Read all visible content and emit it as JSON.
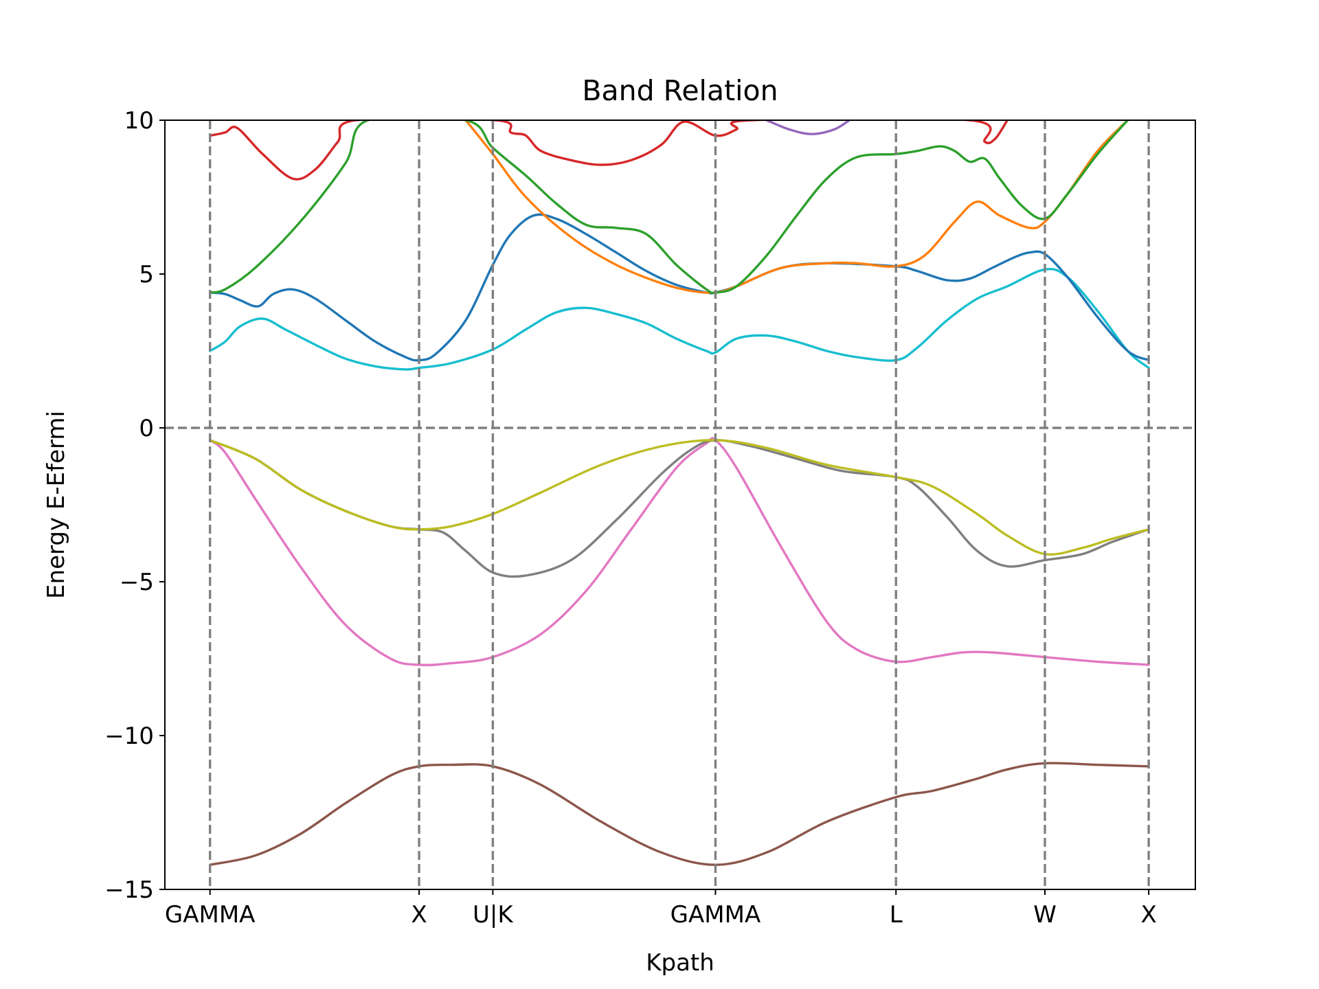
{
  "chart_data": {
    "type": "line",
    "title": "Band Relation",
    "xlabel": "Kpath",
    "ylabel": "Energy E-Efermi",
    "ylim": [
      -15,
      10
    ],
    "xlim": [
      -0.3,
      6.55
    ],
    "yticks": [
      {
        "value": 10,
        "label": "10"
      },
      {
        "value": 5,
        "label": "5"
      },
      {
        "value": 0,
        "label": "0"
      },
      {
        "value": -5,
        "label": "−5"
      },
      {
        "value": -10,
        "label": "−10"
      },
      {
        "value": -15,
        "label": "−15"
      }
    ],
    "kpoints": [
      {
        "x": 0.0,
        "label": "GAMMA"
      },
      {
        "x": 1.39,
        "label": "X"
      },
      {
        "x": 1.88,
        "label": "U|K"
      },
      {
        "x": 3.36,
        "label": "GAMMA"
      },
      {
        "x": 4.56,
        "label": "L"
      },
      {
        "x": 5.55,
        "label": "W"
      },
      {
        "x": 6.24,
        "label": "X"
      }
    ],
    "fermi_level": 0,
    "grid": false,
    "legend": "none",
    "series": [
      {
        "color": "#8c564b",
        "x": [
          0.0,
          0.3,
          0.6,
          0.9,
          1.2,
          1.39,
          1.6,
          1.88,
          2.2,
          2.6,
          3.0,
          3.36,
          3.7,
          4.1,
          4.56,
          4.8,
          5.1,
          5.3,
          5.55,
          5.9,
          6.24
        ],
        "y": [
          -14.2,
          -13.9,
          -13.2,
          -12.2,
          -11.3,
          -11.0,
          -10.95,
          -11.0,
          -11.6,
          -12.8,
          -13.8,
          -14.2,
          -13.8,
          -12.8,
          -12.0,
          -11.8,
          -11.4,
          -11.1,
          -10.9,
          -10.95,
          -11.0
        ]
      },
      {
        "color": "#e377c2",
        "x": [
          0.0,
          0.1,
          0.3,
          0.6,
          0.9,
          1.2,
          1.39,
          1.6,
          1.88,
          2.2,
          2.5,
          2.8,
          3.1,
          3.3,
          3.36,
          3.5,
          3.8,
          4.1,
          4.3,
          4.56,
          4.8,
          5.0,
          5.2,
          5.55,
          5.9,
          6.24
        ],
        "y": [
          -0.4,
          -0.8,
          -2.3,
          -4.5,
          -6.4,
          -7.5,
          -7.7,
          -7.65,
          -7.45,
          -6.7,
          -5.3,
          -3.3,
          -1.3,
          -0.5,
          -0.4,
          -1.3,
          -3.9,
          -6.3,
          -7.2,
          -7.6,
          -7.45,
          -7.3,
          -7.3,
          -7.45,
          -7.6,
          -7.7
        ]
      },
      {
        "color": "#7f7f7f",
        "x": [
          0.0,
          0.3,
          0.6,
          0.9,
          1.2,
          1.39,
          1.55,
          1.7,
          1.88,
          2.1,
          2.4,
          2.7,
          3.0,
          3.2,
          3.36,
          3.6,
          3.9,
          4.2,
          4.56,
          4.7,
          4.9,
          5.1,
          5.3,
          5.55,
          5.8,
          6.0,
          6.24
        ],
        "y": [
          -0.4,
          -1.0,
          -2.0,
          -2.7,
          -3.2,
          -3.3,
          -3.4,
          -4.0,
          -4.7,
          -4.8,
          -4.3,
          -3.0,
          -1.5,
          -0.7,
          -0.4,
          -0.6,
          -1.0,
          -1.4,
          -1.6,
          -1.9,
          -2.9,
          -4.0,
          -4.5,
          -4.3,
          -4.1,
          -3.7,
          -3.3
        ]
      },
      {
        "color": "#bcbd22",
        "x": [
          0.0,
          0.3,
          0.6,
          0.9,
          1.2,
          1.39,
          1.6,
          1.88,
          2.2,
          2.6,
          3.0,
          3.36,
          3.7,
          4.1,
          4.56,
          4.8,
          5.1,
          5.3,
          5.55,
          5.8,
          6.0,
          6.24
        ],
        "y": [
          -0.4,
          -1.0,
          -2.0,
          -2.7,
          -3.2,
          -3.3,
          -3.2,
          -2.8,
          -2.1,
          -1.2,
          -0.6,
          -0.4,
          -0.65,
          -1.2,
          -1.6,
          -1.9,
          -2.8,
          -3.5,
          -4.1,
          -3.9,
          -3.6,
          -3.3
        ]
      },
      {
        "color": "#17becf",
        "x": [
          0.0,
          0.1,
          0.2,
          0.35,
          0.5,
          0.7,
          0.9,
          1.1,
          1.3,
          1.39,
          1.6,
          1.88,
          2.1,
          2.3,
          2.5,
          2.7,
          2.9,
          3.1,
          3.3,
          3.36,
          3.5,
          3.7,
          3.9,
          4.1,
          4.3,
          4.56,
          4.7,
          4.9,
          5.1,
          5.3,
          5.55,
          5.7,
          5.9,
          6.1,
          6.24
        ],
        "y": [
          2.5,
          2.8,
          3.3,
          3.55,
          3.2,
          2.7,
          2.25,
          2.0,
          1.9,
          1.95,
          2.1,
          2.55,
          3.2,
          3.75,
          3.9,
          3.7,
          3.4,
          2.9,
          2.5,
          2.45,
          2.9,
          3.0,
          2.8,
          2.5,
          2.3,
          2.2,
          2.6,
          3.5,
          4.2,
          4.6,
          5.15,
          4.9,
          3.8,
          2.5,
          1.95
        ]
      },
      {
        "color": "#1f77b4",
        "x": [
          0.0,
          0.1,
          0.2,
          0.32,
          0.42,
          0.55,
          0.7,
          0.9,
          1.1,
          1.3,
          1.39,
          1.5,
          1.7,
          1.88,
          2.0,
          2.15,
          2.3,
          2.5,
          2.7,
          2.9,
          3.1,
          3.3,
          3.36,
          3.5,
          3.8,
          4.1,
          4.56,
          4.7,
          4.9,
          5.05,
          5.2,
          5.35,
          5.45,
          5.55,
          5.7,
          5.9,
          6.1,
          6.24
        ],
        "y": [
          4.4,
          4.35,
          4.15,
          3.95,
          4.35,
          4.5,
          4.2,
          3.5,
          2.8,
          2.3,
          2.2,
          2.4,
          3.5,
          5.3,
          6.3,
          6.9,
          6.8,
          6.3,
          5.7,
          5.1,
          4.65,
          4.4,
          4.4,
          4.6,
          5.2,
          5.35,
          5.25,
          5.1,
          4.8,
          4.85,
          5.2,
          5.55,
          5.7,
          5.65,
          4.9,
          3.6,
          2.5,
          2.2
        ]
      },
      {
        "color": "#ff7f0e",
        "x": [
          1.7,
          1.88,
          2.1,
          2.4,
          2.7,
          3.0,
          3.2,
          3.36,
          3.5,
          3.8,
          4.1,
          4.3,
          4.56,
          4.75,
          4.95,
          5.1,
          5.25,
          5.45,
          5.55,
          5.7,
          5.9,
          6.1
        ],
        "y": [
          10.0,
          8.9,
          7.5,
          6.2,
          5.3,
          4.7,
          4.45,
          4.4,
          4.6,
          5.2,
          5.35,
          5.35,
          5.25,
          5.6,
          6.7,
          7.35,
          6.9,
          6.5,
          6.7,
          7.6,
          9.0,
          10.0
        ]
      },
      {
        "color": "#2ca02c",
        "x": [
          0.0,
          0.1,
          0.3,
          0.6,
          0.9,
          1.05,
          1.7,
          1.88,
          2.1,
          2.3,
          2.5,
          2.7,
          2.9,
          3.1,
          3.3,
          3.36,
          3.5,
          3.7,
          3.9,
          4.1,
          4.3,
          4.56,
          4.7,
          4.85,
          4.95,
          5.05,
          5.15,
          5.25,
          5.4,
          5.55,
          5.7,
          5.9,
          6.1
        ],
        "y": [
          4.4,
          4.5,
          5.2,
          6.7,
          8.6,
          10.0,
          10.0,
          9.1,
          8.2,
          7.3,
          6.6,
          6.5,
          6.3,
          5.3,
          4.5,
          4.4,
          4.6,
          5.6,
          6.9,
          8.1,
          8.8,
          8.9,
          9.0,
          9.15,
          9.0,
          8.65,
          8.75,
          8.1,
          7.2,
          6.8,
          7.6,
          8.9,
          10.0
        ]
      },
      {
        "color": "#d62728",
        "x": [
          0.0,
          0.1,
          0.18,
          0.35,
          0.55,
          0.7,
          0.85,
          0.97,
          1.9,
          2.0,
          2.1,
          2.2,
          2.4,
          2.6,
          2.8,
          3.0,
          3.15,
          3.36,
          3.5,
          3.6,
          5.05,
          5.15,
          5.22,
          5.3
        ],
        "y": [
          9.5,
          9.6,
          9.75,
          8.9,
          8.1,
          8.4,
          9.3,
          10.0,
          10.0,
          9.6,
          9.5,
          9.0,
          8.7,
          8.55,
          8.7,
          9.2,
          9.95,
          9.5,
          9.7,
          10.0,
          10.0,
          9.3,
          9.4,
          10.0
        ]
      },
      {
        "color": "#9467bd",
        "x": [
          3.7,
          3.85,
          4.0,
          4.15,
          4.25
        ],
        "y": [
          10.0,
          9.7,
          9.55,
          9.7,
          10.0
        ]
      }
    ]
  }
}
